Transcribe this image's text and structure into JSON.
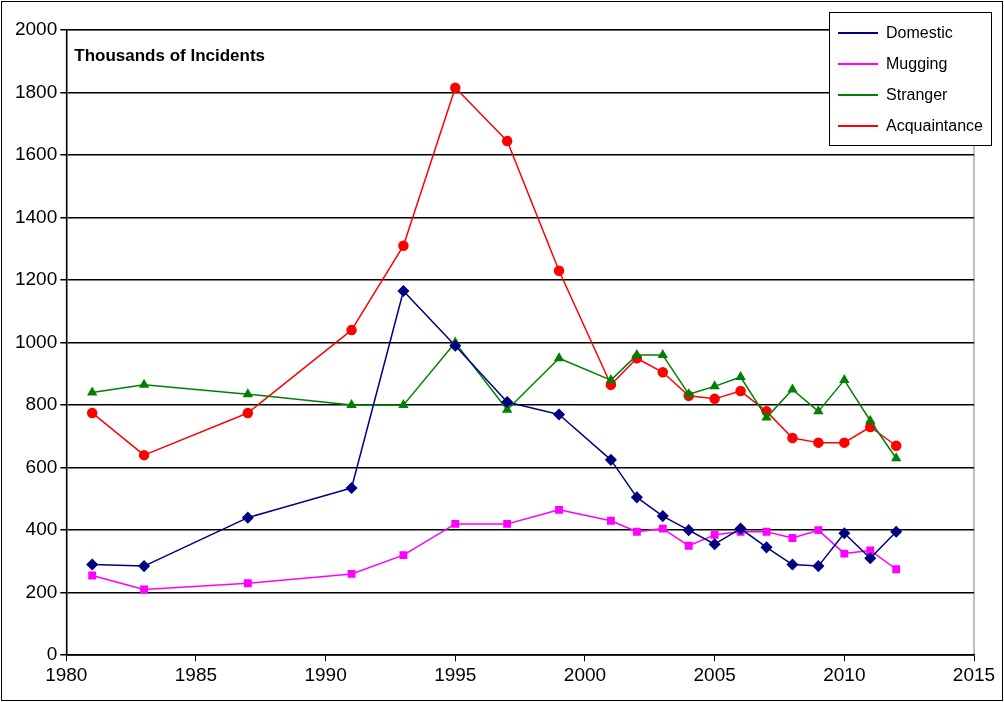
{
  "chart_data": {
    "type": "line",
    "annotations": [
      "Thousands of Incidents"
    ],
    "x": [
      1981,
      1983,
      1987,
      1991,
      1993,
      1995,
      1997,
      1999,
      2001,
      2002,
      2003,
      2004,
      2005,
      2006,
      2007,
      2008,
      2009,
      2010,
      2011,
      2012
    ],
    "series": [
      {
        "name": "Domestic",
        "color": "#000080",
        "marker": "diamond",
        "values": [
          290,
          285,
          440,
          535,
          1165,
          990,
          810,
          770,
          625,
          505,
          445,
          400,
          355,
          405,
          345,
          290,
          285,
          390,
          310,
          395
        ]
      },
      {
        "name": "Mugging",
        "color": "#ff00ff",
        "marker": "square",
        "values": [
          255,
          210,
          230,
          260,
          320,
          420,
          420,
          465,
          430,
          395,
          405,
          350,
          385,
          395,
          395,
          375,
          400,
          325,
          335,
          275
        ]
      },
      {
        "name": "Stranger",
        "color": "#008000",
        "marker": "triangle",
        "values": [
          840,
          865,
          835,
          800,
          800,
          1000,
          785,
          950,
          880,
          960,
          960,
          835,
          860,
          890,
          760,
          850,
          780,
          880,
          750,
          630
        ]
      },
      {
        "name": "Acquaintance",
        "color": "#ff0000",
        "marker": "circle",
        "values": [
          775,
          640,
          775,
          1040,
          1310,
          1815,
          1645,
          1230,
          865,
          950,
          905,
          830,
          820,
          845,
          780,
          695,
          680,
          680,
          730,
          670
        ]
      }
    ],
    "xlim": [
      1980,
      2015
    ],
    "xticks": [
      1980,
      1985,
      1990,
      1995,
      2000,
      2005,
      2010,
      2015
    ],
    "ylim": [
      0,
      2000
    ],
    "yticks": [
      0,
      200,
      400,
      600,
      800,
      1000,
      1200,
      1400,
      1600,
      1800,
      2000
    ],
    "grid": "y",
    "legend": "top right",
    "line_style": "solid"
  }
}
